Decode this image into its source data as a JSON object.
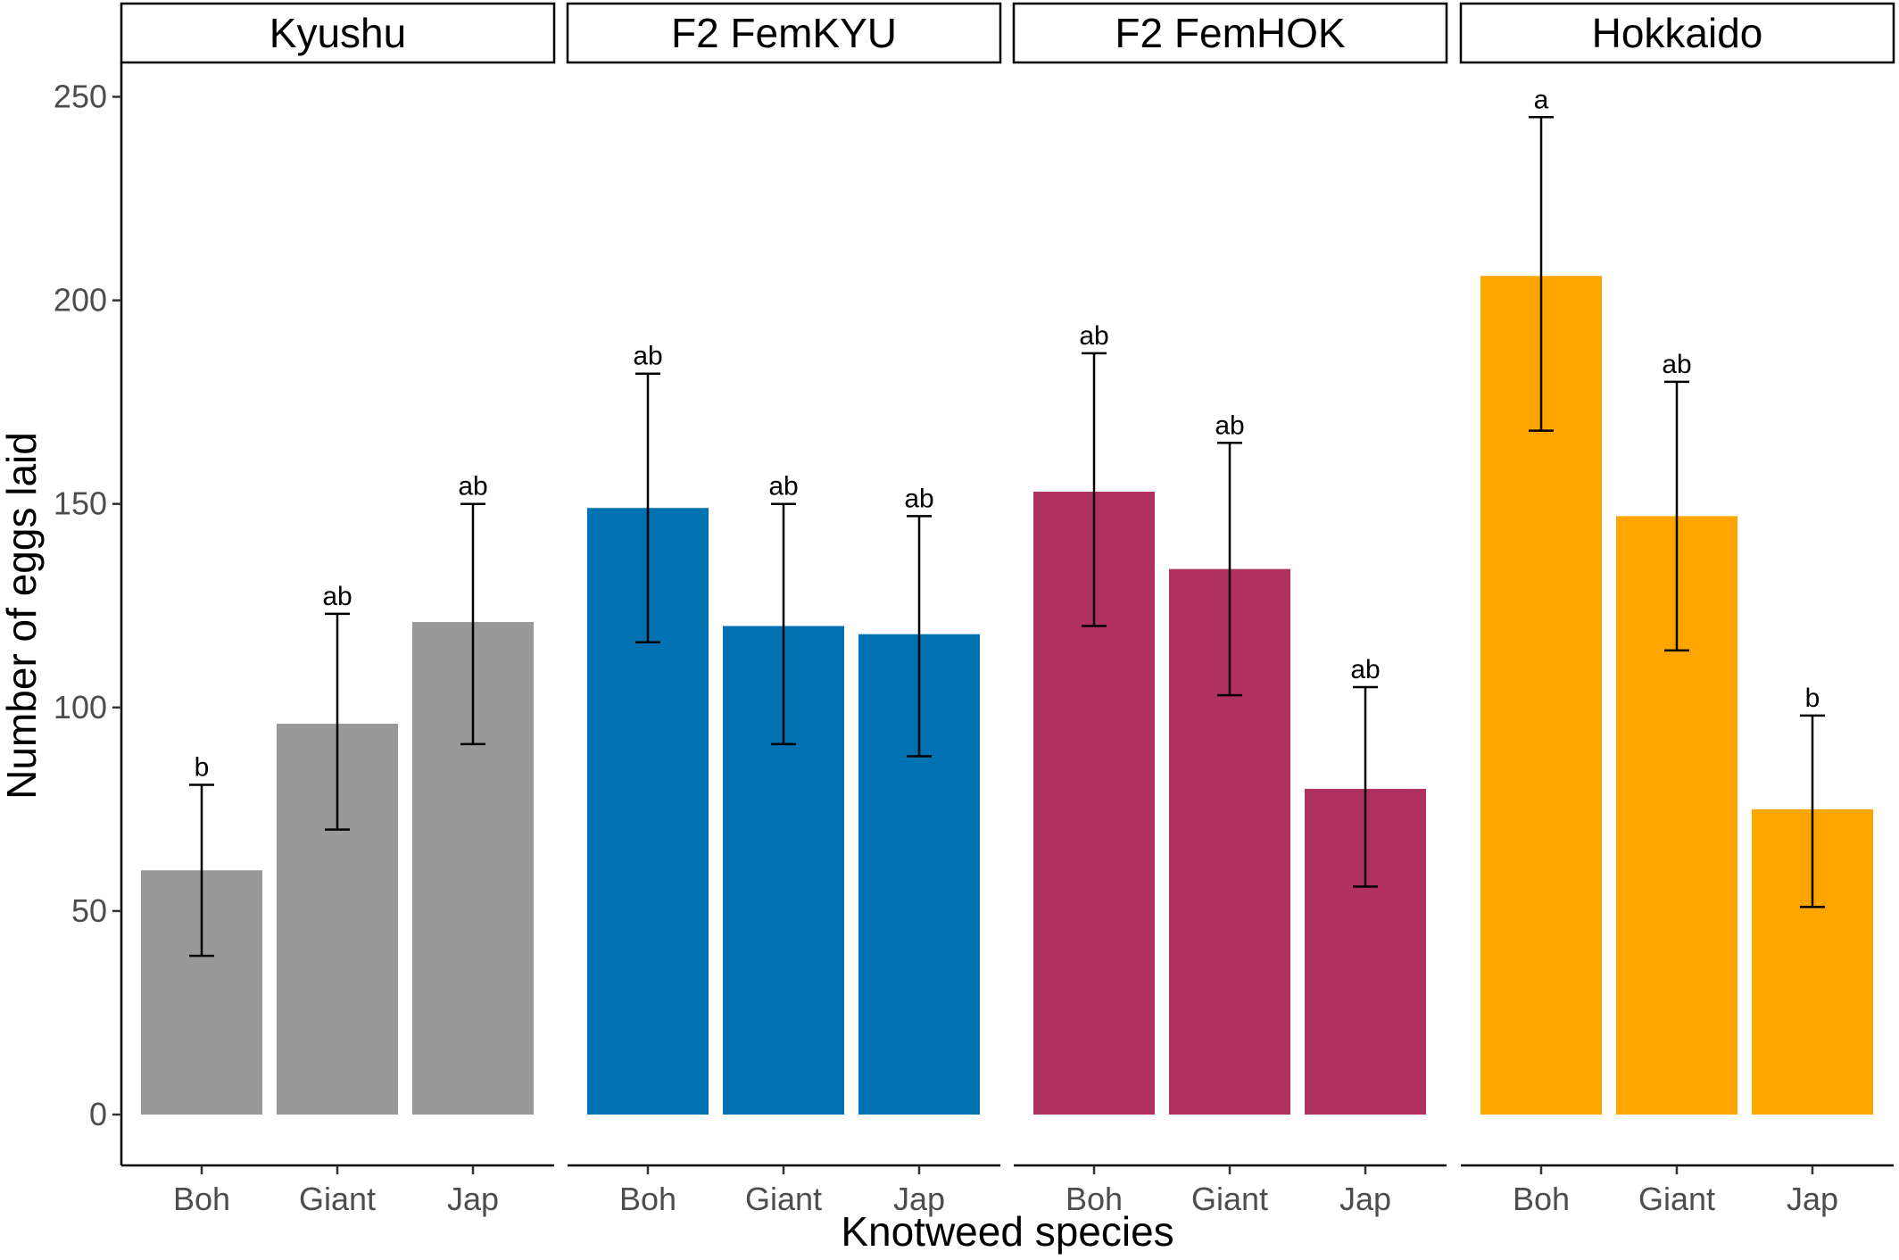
{
  "chart_data": {
    "type": "bar",
    "xlabel": "Knotweed species",
    "ylabel": "Number of eggs laid",
    "ylim": [
      0,
      260
    ],
    "yticks": [
      0,
      50,
      100,
      150,
      200,
      250
    ],
    "categories": [
      "Boh",
      "Giant",
      "Jap"
    ],
    "grid": false,
    "legend": "none",
    "panels": [
      {
        "label": "Kyushu",
        "color": "#999999",
        "values": [
          60,
          96,
          121
        ],
        "error_low": [
          39,
          70,
          91
        ],
        "error_high": [
          81,
          123,
          150
        ],
        "letters": [
          "b",
          "ab",
          "ab"
        ]
      },
      {
        "label": "F2 FemKYU",
        "color": "#0072B2",
        "values": [
          149,
          120,
          118
        ],
        "error_low": [
          116,
          91,
          88
        ],
        "error_high": [
          182,
          150,
          147
        ],
        "letters": [
          "ab",
          "ab",
          "ab"
        ]
      },
      {
        "label": "F2 FemHOK",
        "color": "#B03060",
        "values": [
          153,
          134,
          80
        ],
        "error_low": [
          120,
          103,
          56
        ],
        "error_high": [
          187,
          165,
          105
        ],
        "letters": [
          "ab",
          "ab",
          "ab"
        ]
      },
      {
        "label": "Hokkaido",
        "color": "#FFA500",
        "values": [
          206,
          147,
          75
        ],
        "error_low": [
          168,
          114,
          51
        ],
        "error_high": [
          245,
          180,
          98
        ],
        "letters": [
          "a",
          "ab",
          "b"
        ]
      }
    ]
  }
}
